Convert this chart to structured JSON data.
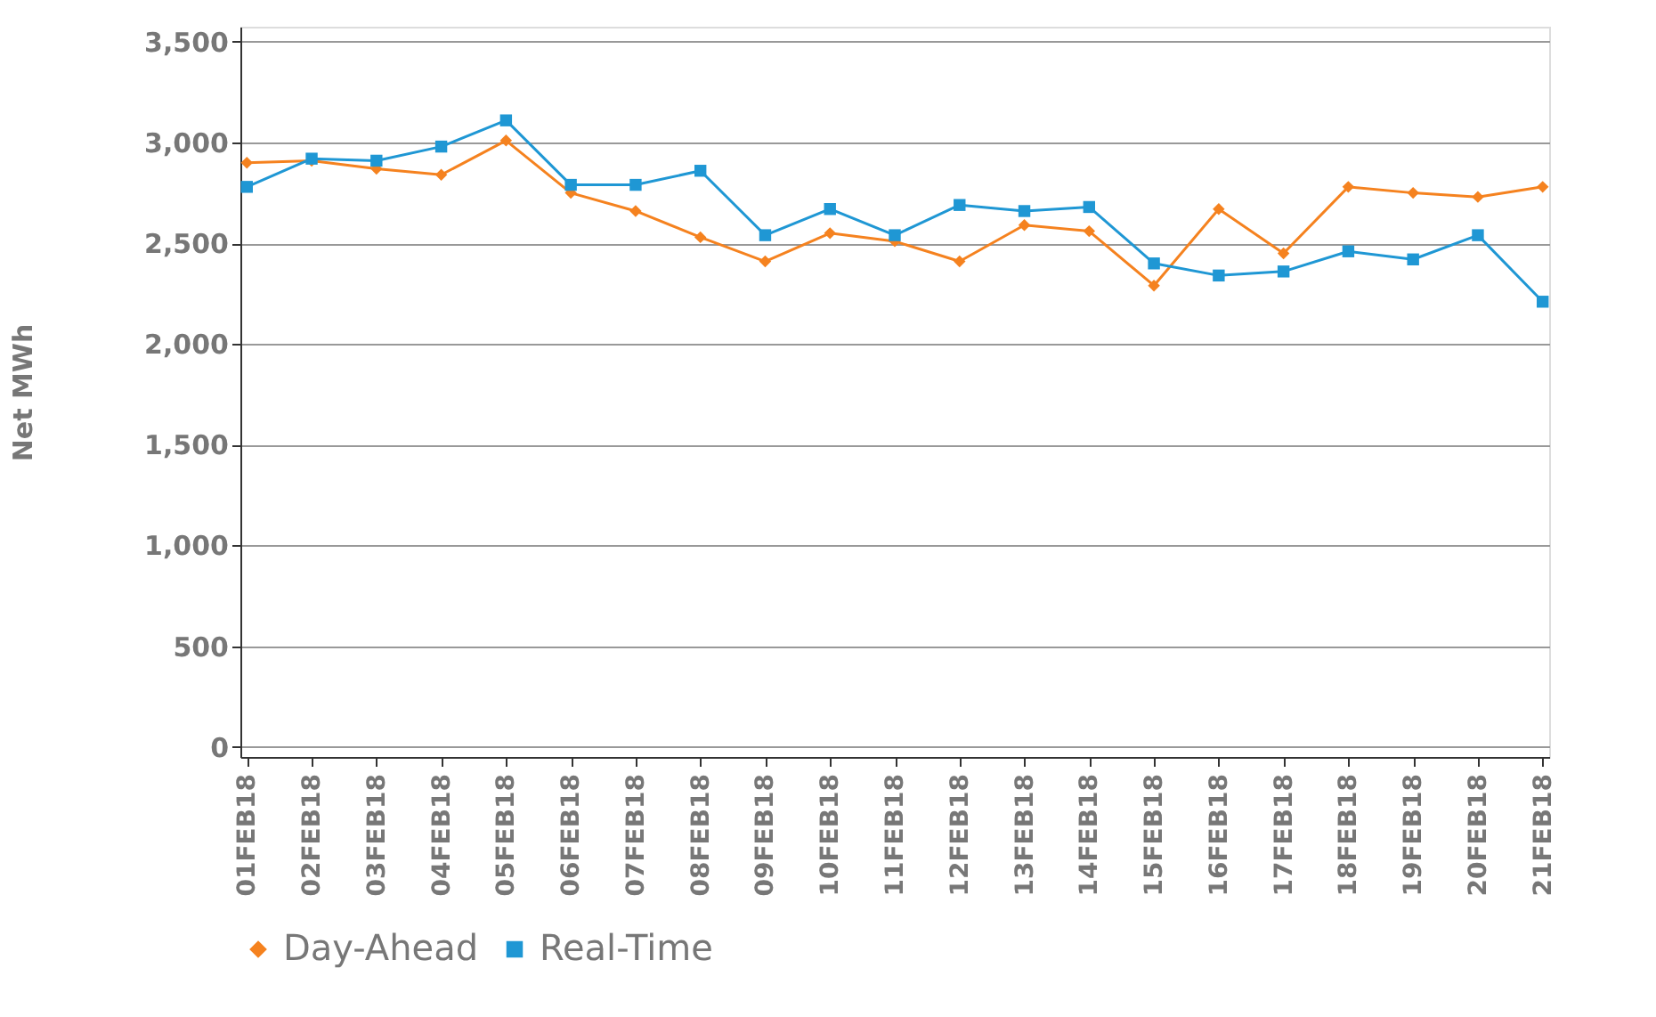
{
  "chart_data": {
    "type": "line",
    "ylabel": "Net MWh",
    "categories": [
      "01FEB18",
      "02FEB18",
      "03FEB18",
      "04FEB18",
      "05FEB18",
      "06FEB18",
      "07FEB18",
      "08FEB18",
      "09FEB18",
      "10FEB18",
      "11FEB18",
      "12FEB18",
      "13FEB18",
      "14FEB18",
      "15FEB18",
      "16FEB18",
      "17FEB18",
      "18FEB18",
      "19FEB18",
      "20FEB18",
      "21FEB18"
    ],
    "series": [
      {
        "name": "Day-Ahead",
        "color": "#f5821f",
        "marker": "diamond",
        "values": [
          2900,
          2910,
          2870,
          2840,
          3010,
          2750,
          2660,
          2530,
          2410,
          2550,
          2510,
          2410,
          2590,
          2560,
          2290,
          2670,
          2450,
          2780,
          2750,
          2730,
          2780
        ]
      },
      {
        "name": "Real-Time",
        "color": "#1f97d4",
        "marker": "square",
        "values": [
          2780,
          2920,
          2910,
          2980,
          3110,
          2790,
          2790,
          2860,
          2540,
          2670,
          2540,
          2690,
          2660,
          2680,
          2400,
          2340,
          2360,
          2460,
          2420,
          2540,
          2210
        ]
      }
    ],
    "ylim": [
      -50,
      3575
    ],
    "yticks": [
      0,
      500,
      {
        "value": 1000,
        "label": "1,000"
      },
      {
        "value": 1500,
        "label": "1,500"
      },
      {
        "value": 2000,
        "label": "2,000"
      },
      {
        "value": 2500,
        "label": "2,500"
      },
      {
        "value": 3000,
        "label": "3,000"
      },
      {
        "value": 3500,
        "label": "3,500"
      }
    ],
    "grid": "y",
    "legend": "bottom",
    "line_style": "solid"
  }
}
